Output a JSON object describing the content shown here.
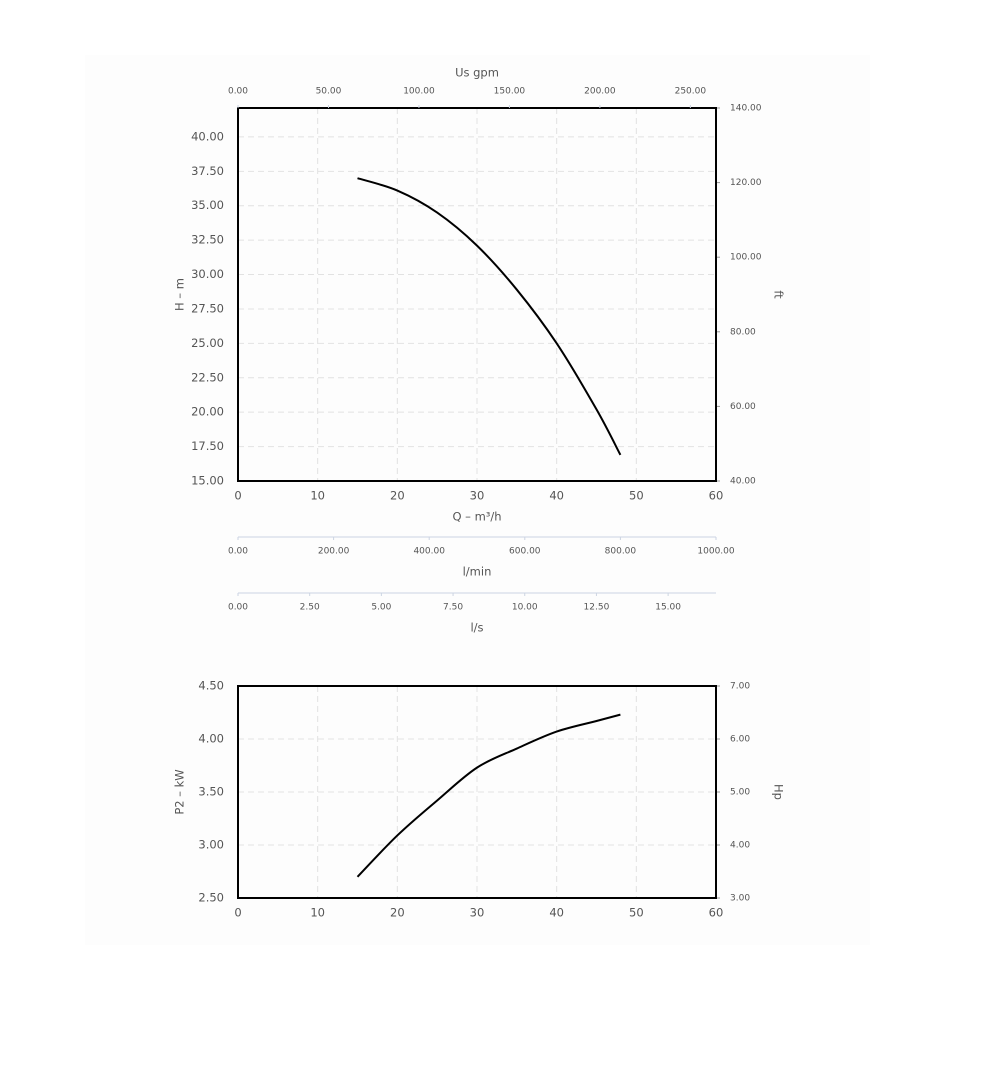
{
  "chart_data": [
    {
      "type": "line",
      "x_label": "Q – m³/h",
      "y_label": "H – m",
      "y2_label": "ft",
      "x": [
        15,
        20,
        25,
        30,
        35,
        40,
        45,
        48
      ],
      "series": [
        {
          "color": "#000000",
          "values": [
            37.0,
            36.1,
            34.5,
            32.1,
            28.9,
            25.0,
            20.2,
            16.9
          ]
        }
      ],
      "xlim": [
        0,
        60
      ],
      "xticks": [
        0,
        10,
        20,
        30,
        40,
        50,
        60
      ],
      "ylim": [
        15,
        42.1
      ],
      "yticks": [
        {
          "value": 15,
          "label": "15.00"
        },
        {
          "value": 17.5,
          "label": "17.50"
        },
        {
          "value": 20,
          "label": "20.00"
        },
        {
          "value": 22.5,
          "label": "22.50"
        },
        {
          "value": 25,
          "label": "25.00"
        },
        {
          "value": 27.5,
          "label": "27.50"
        },
        {
          "value": 30,
          "label": "30.00"
        },
        {
          "value": 32.5,
          "label": "32.50"
        },
        {
          "value": 35,
          "label": "35.00"
        },
        {
          "value": 37.5,
          "label": "37.50"
        },
        {
          "value": 40,
          "label": "40.00"
        }
      ],
      "y2lim": [
        40,
        140
      ],
      "y2ticks": [
        {
          "value": 40,
          "label": "40.00"
        },
        {
          "value": 60,
          "label": "60.00"
        },
        {
          "value": 80,
          "label": "80.00"
        },
        {
          "value": 100,
          "label": "100.00"
        },
        {
          "value": 120,
          "label": "120.00"
        },
        {
          "value": 140,
          "label": "140.00"
        }
      ],
      "grid": true,
      "secondary_x_axes": [
        {
          "label": "Us gpm",
          "position": "top",
          "xlim": [
            0,
            264.17
          ],
          "xticks": [
            {
              "value": 0,
              "label": "0.00"
            },
            {
              "value": 50,
              "label": "50.00"
            },
            {
              "value": 100,
              "label": "100.00"
            },
            {
              "value": 150,
              "label": "150.00"
            },
            {
              "value": 200,
              "label": "200.00"
            },
            {
              "value": 250,
              "label": "250.00"
            }
          ]
        },
        {
          "label": "l/min",
          "position": "bottom",
          "xlim": [
            0,
            1000
          ],
          "xticks": [
            {
              "value": 0,
              "label": "0.00"
            },
            {
              "value": 200,
              "label": "200.00"
            },
            {
              "value": 400,
              "label": "400.00"
            },
            {
              "value": 600,
              "label": "600.00"
            },
            {
              "value": 800,
              "label": "800.00"
            },
            {
              "value": 1000,
              "label": "1000.00"
            }
          ]
        },
        {
          "label": "l/s",
          "position": "bottom",
          "xlim": [
            0,
            16.67
          ],
          "xticks": [
            {
              "value": 0,
              "label": "0.00"
            },
            {
              "value": 2.5,
              "label": "2.50"
            },
            {
              "value": 5,
              "label": "5.00"
            },
            {
              "value": 7.5,
              "label": "7.50"
            },
            {
              "value": 10,
              "label": "10.00"
            },
            {
              "value": 12.5,
              "label": "12.50"
            },
            {
              "value": 15,
              "label": "15.00"
            }
          ]
        }
      ]
    },
    {
      "type": "line",
      "y_label": "P2 – kW",
      "y2_label": "Hp",
      "x": [
        15,
        20,
        25,
        30,
        35,
        40,
        45,
        48
      ],
      "series": [
        {
          "color": "#000000",
          "values": [
            2.7,
            3.09,
            3.42,
            3.73,
            3.91,
            4.07,
            4.17,
            4.23
          ]
        }
      ],
      "xlim": [
        0,
        60
      ],
      "xticks": [
        0,
        10,
        20,
        30,
        40,
        50,
        60
      ],
      "ylim": [
        2.5,
        4.5
      ],
      "yticks": [
        {
          "value": 2.5,
          "label": "2.50"
        },
        {
          "value": 3,
          "label": "3.00"
        },
        {
          "value": 3.5,
          "label": "3.50"
        },
        {
          "value": 4,
          "label": "4.00"
        },
        {
          "value": 4.5,
          "label": "4.50"
        }
      ],
      "y2lim": [
        3,
        7
      ],
      "y2ticks": [
        {
          "value": 3,
          "label": "3.00"
        },
        {
          "value": 4,
          "label": "4.00"
        },
        {
          "value": 5,
          "label": "5.00"
        },
        {
          "value": 6,
          "label": "6.00"
        },
        {
          "value": 7,
          "label": "7.00"
        }
      ],
      "grid": true
    }
  ]
}
